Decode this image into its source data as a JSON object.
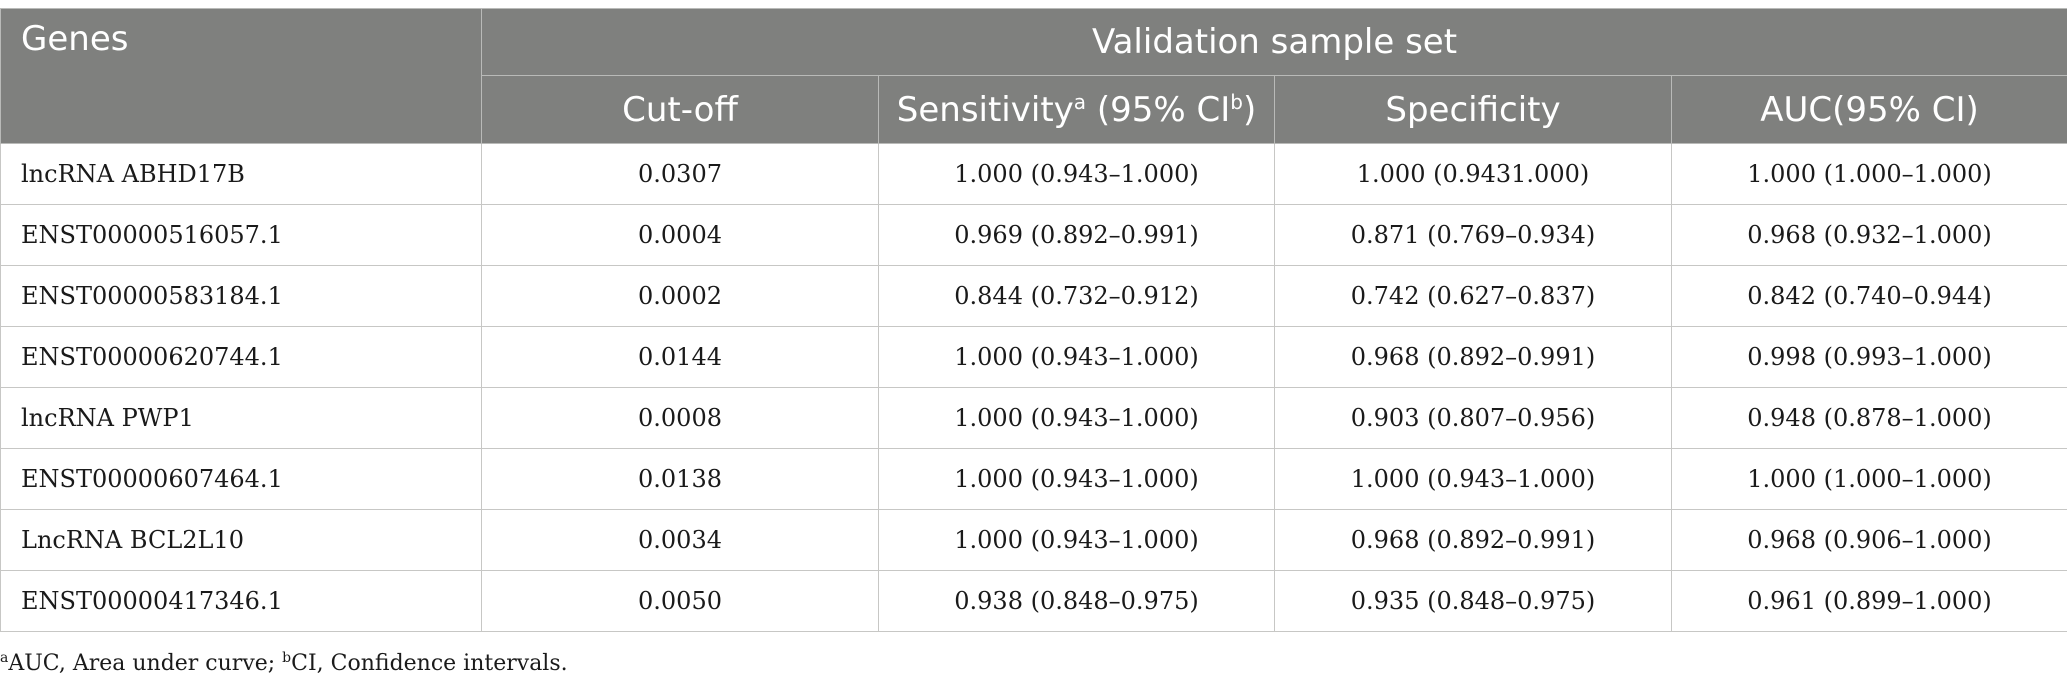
{
  "table": {
    "header": {
      "genes": "Genes",
      "group": "Validation sample set",
      "cutoff": "Cut-off",
      "sensitivity_label": "Sensitivity",
      "sensitivity_sup_a": "a",
      "sensitivity_ci_open": " (95% CI",
      "sensitivity_sup_b": "b",
      "sensitivity_ci_close": ")",
      "specificity": "Specificity",
      "auc": "AUC(95% CI)"
    },
    "rows": [
      {
        "gene": "lncRNA ABHD17B",
        "cutoff": "0.0307",
        "sensitivity": "1.000 (0.943–1.000)",
        "specificity": "1.000 (0.9431.000)",
        "auc": "1.000 (1.000–1.000)"
      },
      {
        "gene": "ENST00000516057.1",
        "cutoff": "0.0004",
        "sensitivity": "0.969 (0.892–0.991)",
        "specificity": "0.871 (0.769–0.934)",
        "auc": "0.968 (0.932–1.000)"
      },
      {
        "gene": "ENST00000583184.1",
        "cutoff": "0.0002",
        "sensitivity": "0.844 (0.732–0.912)",
        "specificity": "0.742 (0.627–0.837)",
        "auc": "0.842 (0.740–0.944)"
      },
      {
        "gene": "ENST00000620744.1",
        "cutoff": "0.0144",
        "sensitivity": "1.000 (0.943–1.000)",
        "specificity": "0.968 (0.892–0.991)",
        "auc": "0.998 (0.993–1.000)"
      },
      {
        "gene": "lncRNA PWP1",
        "cutoff": "0.0008",
        "sensitivity": "1.000 (0.943–1.000)",
        "specificity": "0.903 (0.807–0.956)",
        "auc": "0.948 (0.878–1.000)"
      },
      {
        "gene": "ENST00000607464.1",
        "cutoff": "0.0138",
        "sensitivity": "1.000 (0.943–1.000)",
        "specificity": "1.000 (0.943–1.000)",
        "auc": "1.000 (1.000–1.000)"
      },
      {
        "gene": "LncRNA BCL2L10",
        "cutoff": "0.0034",
        "sensitivity": "1.000 (0.943–1.000)",
        "specificity": "0.968 (0.892–0.991)",
        "auc": "0.968 (0.906–1.000)"
      },
      {
        "gene": "ENST00000417346.1",
        "cutoff": "0.0050",
        "sensitivity": "0.938 (0.848–0.975)",
        "specificity": "0.935 (0.848–0.975)",
        "auc": "0.961 (0.899–1.000)"
      }
    ]
  },
  "footnote": {
    "sup_a": "a",
    "text_a": "AUC, Area under curve; ",
    "sup_b": "b",
    "text_b": "CI, Confidence intervals."
  },
  "colors": {
    "header_bg": "#7f807e",
    "header_text": "#ffffff",
    "grid": "#c7c7c5"
  }
}
